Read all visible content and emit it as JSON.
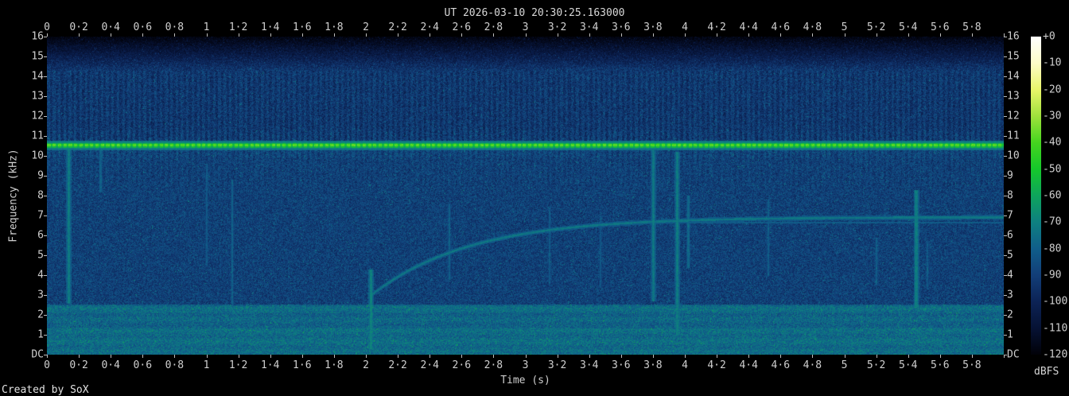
{
  "chart_data": {
    "type": "heatmap",
    "subtype": "spectrogram",
    "title": "UT 2026-03-10 20:30:25.163000",
    "xlabel": "Time (s)",
    "ylabel": "Frequency (kHz)",
    "colorbar_label": "dBFS",
    "credit": "Created by SoX",
    "x_range_s": [
      0,
      6
    ],
    "y_range_khz": [
      0,
      16
    ],
    "db_range": [
      -120,
      0
    ],
    "x_tick_step_s": 0.2,
    "x_tick_labels": [
      "0",
      "0·2",
      "0·4",
      "0·6",
      "0·8",
      "1",
      "1·2",
      "1·4",
      "1·6",
      "1·8",
      "2",
      "2·2",
      "2·4",
      "2·6",
      "2·8",
      "3",
      "3·2",
      "3·4",
      "3·6",
      "3·8",
      "4",
      "4·2",
      "4·4",
      "4·6",
      "4·8",
      "5",
      "5·2",
      "5·4",
      "5·6",
      "5·8"
    ],
    "y_tick_labels": [
      "16",
      "15",
      "14",
      "13",
      "12",
      "11",
      "10",
      "9",
      "8",
      "7",
      "6",
      "5",
      "4",
      "3",
      "2",
      "1",
      "DC"
    ],
    "db_tick_labels": [
      "+0",
      "-10",
      "-20",
      "-30",
      "-40",
      "-50",
      "-60",
      "-70",
      "-80",
      "-90",
      "-100",
      "-110",
      "-120"
    ],
    "grid": false,
    "palette": [
      {
        "db": 0,
        "color": "#ffffff"
      },
      {
        "db": -10,
        "color": "#fdfdc8"
      },
      {
        "db": -20,
        "color": "#e9f56a"
      },
      {
        "db": -30,
        "color": "#9fe13c"
      },
      {
        "db": -40,
        "color": "#45d51f"
      },
      {
        "db": -50,
        "color": "#15c82b"
      },
      {
        "db": -60,
        "color": "#0ea45c"
      },
      {
        "db": -70,
        "color": "#0e8080"
      },
      {
        "db": -80,
        "color": "#105e8a"
      },
      {
        "db": -90,
        "color": "#123e78"
      },
      {
        "db": -100,
        "color": "#0c2355"
      },
      {
        "db": -110,
        "color": "#061234"
      },
      {
        "db": -120,
        "color": "#010108"
      }
    ],
    "features": {
      "carrier_tone": {
        "freq_khz": 10.55,
        "level_db": -38,
        "dash_period_s": 0.0335,
        "dash_duty": 0.62,
        "halo_level_db": -62,
        "description": "bright dashed green carrier across full duration"
      },
      "chirp": {
        "start_s": 2.03,
        "start_khz": 3.0,
        "plateau_khz": 6.93,
        "tau_s": 0.62,
        "level_db": -73,
        "description": "exponential rise then flat tone to end"
      },
      "secondary_tone": {
        "freq_khz": 6.67,
        "from_s": 3.55,
        "level_db": -81
      },
      "impulses": [
        {
          "t": 0.135,
          "f0": 2.6,
          "f1": 10.45,
          "db": -72
        },
        {
          "t": 0.335,
          "f0": 8.2,
          "f1": 10.45,
          "db": -80
        },
        {
          "t": 1.0,
          "f0": 4.5,
          "f1": 9.6,
          "db": -82
        },
        {
          "t": 1.16,
          "f0": 2.6,
          "f1": 8.8,
          "db": -80
        },
        {
          "t": 2.03,
          "f0": 0.3,
          "f1": 4.3,
          "db": -70
        },
        {
          "t": 2.52,
          "f0": 3.8,
          "f1": 7.6,
          "db": -80
        },
        {
          "t": 3.15,
          "f0": 3.6,
          "f1": 7.4,
          "db": -82
        },
        {
          "t": 3.47,
          "f0": 3.4,
          "f1": 7.0,
          "db": -83
        },
        {
          "t": 3.8,
          "f0": 2.7,
          "f1": 10.3,
          "db": -73
        },
        {
          "t": 3.95,
          "f0": 1.0,
          "f1": 10.2,
          "db": -72
        },
        {
          "t": 4.02,
          "f0": 4.4,
          "f1": 8.0,
          "db": -78
        },
        {
          "t": 4.52,
          "f0": 4.0,
          "f1": 7.8,
          "db": -81
        },
        {
          "t": 5.2,
          "f0": 3.5,
          "f1": 5.9,
          "db": -81
        },
        {
          "t": 5.45,
          "f0": 2.4,
          "f1": 8.3,
          "db": -72
        },
        {
          "t": 5.52,
          "f0": 3.3,
          "f1": 5.7,
          "db": -82
        }
      ],
      "noise_bands": [
        {
          "f0": 0,
          "f1": 2.55,
          "base_db": -79,
          "description": "bright teal low-frequency noise floor"
        },
        {
          "f0": 2.55,
          "f1": 10.45,
          "base_db": -90,
          "description": "main blue noise field"
        },
        {
          "f0": 10.45,
          "f1": 14.3,
          "base_db": -93,
          "striation": true,
          "description": "striated band above carrier"
        },
        {
          "f0": 14.3,
          "f1": 16,
          "base_db": -93,
          "fade_to_db": -118,
          "description": "rolloff to black at top"
        }
      ]
    }
  }
}
